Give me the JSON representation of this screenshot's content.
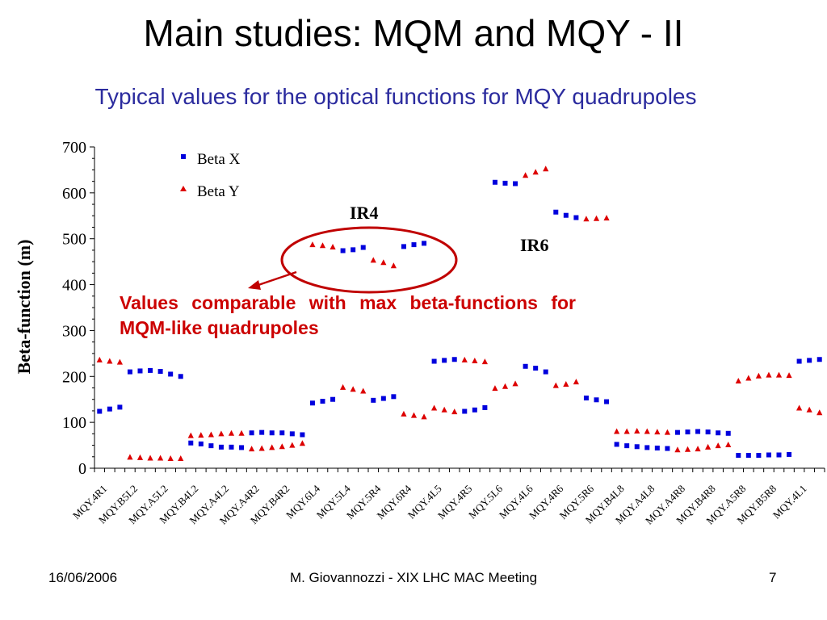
{
  "slide": {
    "title": "Main studies: MQM and MQY - II",
    "subtitle": "Typical values for the optical functions for MQY quadrupoles",
    "callout": "Values comparable with max beta-functions for MQM-like quadrupoles",
    "footer": {
      "date": "16/06/2006",
      "center": "M. Giovannozzi - XIX LHC MAC Meeting",
      "page": "7"
    }
  },
  "colors": {
    "beta_x": "#0000dd",
    "beta_y": "#dd0000",
    "ellipse": "#c00000",
    "subtitle": "#2b2b9e"
  },
  "chart_data": {
    "type": "scatter",
    "ylabel": "Beta-function (m)",
    "ylim": [
      0,
      700
    ],
    "yticks": [
      0,
      100,
      200,
      300,
      400,
      500,
      600,
      700
    ],
    "grid": false,
    "legend_position": "top-left",
    "annotations": [
      "IR4",
      "IR6"
    ],
    "categories": [
      "MQY.4R1",
      "MQY.B5L2",
      "MQY.A5L2",
      "MQY.B4L2",
      "MQY.A4L2",
      "MQY.A4R2",
      "MQY.B4R2",
      "MQY.6L4",
      "MQY.5L4",
      "MQY.5R4",
      "MQY.6R4",
      "MQY.4L5",
      "MQY.4R5",
      "MQY.5L6",
      "MQY.4L6",
      "MQY.4R6",
      "MQY.5R6",
      "MQY.B4L8",
      "MQY.A4L8",
      "MQY.A4R8",
      "MQY.B4R8",
      "MQY.A5R8",
      "MQY.B5R8",
      "MQY.4L1"
    ],
    "series": [
      {
        "name": "Beta X",
        "marker": "square",
        "values": [
          [
            124,
            129,
            133
          ],
          [
            210,
            212,
            213
          ],
          [
            211,
            205,
            200
          ],
          [
            55,
            53,
            49
          ],
          [
            46,
            46,
            45
          ],
          [
            77,
            78,
            77
          ],
          [
            77,
            75,
            73
          ],
          [
            142,
            146,
            150
          ],
          [
            474,
            476,
            481
          ],
          [
            148,
            152,
            156
          ],
          [
            483,
            487,
            490
          ],
          [
            233,
            235,
            237
          ],
          [
            124,
            127,
            132
          ],
          [
            623,
            621,
            620
          ],
          [
            222,
            218,
            210
          ],
          [
            558,
            551,
            546
          ],
          [
            153,
            149,
            145
          ],
          [
            52,
            49,
            47
          ],
          [
            45,
            44,
            43
          ],
          [
            78,
            79,
            80
          ],
          [
            79,
            77,
            76
          ],
          [
            28,
            28,
            28
          ],
          [
            29,
            29,
            30
          ],
          [
            233,
            235,
            237
          ]
        ]
      },
      {
        "name": "Beta Y",
        "marker": "triangle",
        "values": [
          [
            236,
            233,
            231
          ],
          [
            24,
            23,
            22
          ],
          [
            22,
            21,
            21
          ],
          [
            71,
            72,
            73
          ],
          [
            75,
            76,
            76
          ],
          [
            42,
            43,
            45
          ],
          [
            47,
            50,
            54
          ],
          [
            487,
            485,
            482
          ],
          [
            176,
            172,
            168
          ],
          [
            453,
            448,
            441
          ],
          [
            118,
            115,
            112
          ],
          [
            131,
            127,
            123
          ],
          [
            236,
            234,
            232
          ],
          [
            174,
            178,
            184
          ],
          [
            638,
            645,
            652
          ],
          [
            180,
            183,
            188
          ],
          [
            543,
            544,
            545
          ],
          [
            80,
            80,
            81
          ],
          [
            80,
            79,
            78
          ],
          [
            40,
            41,
            42
          ],
          [
            46,
            49,
            51
          ],
          [
            190,
            196,
            201
          ],
          [
            203,
            203,
            202
          ],
          [
            131,
            127,
            121
          ]
        ]
      }
    ]
  }
}
